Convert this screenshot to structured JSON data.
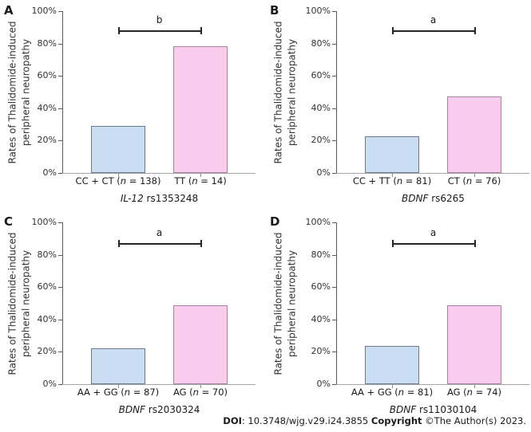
{
  "figure": {
    "background": "#ffffff",
    "y_axis_title": "Rates of Thalidomide-induced peripheral neuropathy",
    "y_axis_title_lines": [
      "Rates of Thalidomide-induced",
      "peripheral neuropathy"
    ]
  },
  "style": {
    "blue_fill": "#c9ddf3",
    "blue_border": "#6e7b8f",
    "pink_fill": "#f9cbec",
    "pink_border": "#a884a2",
    "axis_color": "#595959",
    "baseline_color": "#a6a6a6",
    "text_color": "#262626"
  },
  "chart_data": [
    {
      "type": "bar",
      "panel_label": "A",
      "gene": "IL-12",
      "snp": "rs1353248",
      "xlabel": "IL-12 rs1353248",
      "ylabel": "Rates of Thalidomide-induced peripheral neuropathy",
      "ylim": [
        0,
        100
      ],
      "y_ticks_pct": [
        0,
        20,
        40,
        60,
        80,
        100
      ],
      "categories": [
        "CC + CT (n = 138)",
        "TT (n = 14)"
      ],
      "values": [
        29,
        78.5
      ],
      "significance_letter": "b",
      "significance_bar_y_pct": 88,
      "legend": "none",
      "grid": false
    },
    {
      "type": "bar",
      "panel_label": "B",
      "gene": "BDNF",
      "snp": "rs6265",
      "xlabel": "BDNF rs6265",
      "ylabel": "Rates of Thalidomide-induced peripheral neuropathy",
      "ylim": [
        0,
        100
      ],
      "y_ticks_pct": [
        0,
        20,
        40,
        60,
        80,
        100
      ],
      "categories": [
        "CC + TT (n = 81)",
        "CT (n = 76)"
      ],
      "values": [
        22.5,
        47.5
      ],
      "significance_letter": "a",
      "significance_bar_y_pct": 88,
      "legend": "none",
      "grid": false
    },
    {
      "type": "bar",
      "panel_label": "C",
      "gene": "BDNF",
      "snp": "rs2030324",
      "xlabel": "BDNF rs2030324",
      "ylabel": "Rates of Thalidomide-induced peripheral neuropathy",
      "ylim": [
        0,
        100
      ],
      "y_ticks_pct": [
        0,
        20,
        40,
        60,
        80,
        100
      ],
      "categories": [
        "AA + GG (n = 87)",
        "AG (n = 70)"
      ],
      "values": [
        22,
        48.6
      ],
      "significance_letter": "a",
      "significance_bar_y_pct": 87,
      "legend": "none",
      "grid": false
    },
    {
      "type": "bar",
      "panel_label": "D",
      "gene": "BDNF",
      "snp": "rs11030104",
      "xlabel": "BDNF rs11030104",
      "ylabel": "Rates of Thalidomide-induced peripheral neuropathy",
      "ylim": [
        0,
        100
      ],
      "y_ticks_pct": [
        0,
        20,
        40,
        60,
        80,
        100
      ],
      "categories": [
        "AA + GG (n = 81)",
        "AG (n = 74)"
      ],
      "values": [
        23.5,
        48.6
      ],
      "significance_letter": "a",
      "significance_bar_y_pct": 87,
      "legend": "none",
      "grid": false
    }
  ],
  "footer": {
    "doi_label": "DOI",
    "doi_value": ": 10.3748/wjg.v29.i24.3855 ",
    "copyright_label": "Copyright",
    "copyright_value": " ©The Author(s) 2023."
  }
}
